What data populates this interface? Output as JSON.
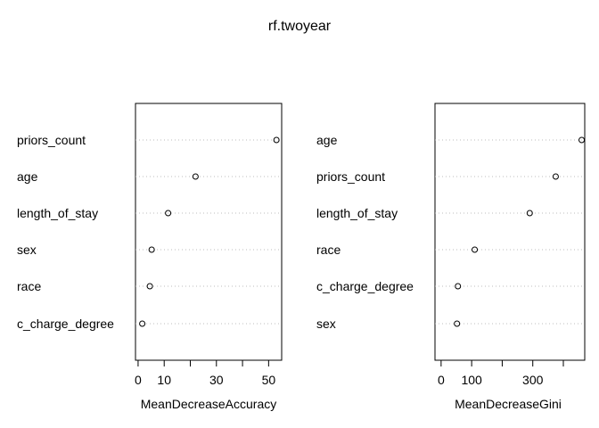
{
  "title": "rf.twoyear",
  "chart_data": [
    {
      "type": "scatter",
      "subtype": "dotchart",
      "xlabel": "MeanDecreaseAccuracy",
      "categories": [
        "priors_count",
        "age",
        "length_of_stay",
        "sex",
        "race",
        "c_charge_degree"
      ],
      "values": [
        53,
        22,
        11.5,
        5.2,
        4.5,
        1.6
      ],
      "xlim": [
        -1,
        55
      ],
      "xticks": [
        0,
        10,
        20,
        30,
        40,
        50
      ],
      "xtick_labels": [
        "0",
        "10",
        "",
        "30",
        "",
        "50"
      ],
      "grid": "dotted-horizontal"
    },
    {
      "type": "scatter",
      "subtype": "dotchart",
      "xlabel": "MeanDecreaseGini",
      "categories": [
        "age",
        "priors_count",
        "length_of_stay",
        "race",
        "c_charge_degree",
        "sex"
      ],
      "values": [
        460,
        375,
        290,
        110,
        55,
        52
      ],
      "xlim": [
        -20,
        470
      ],
      "xticks": [
        0,
        100,
        200,
        300,
        400
      ],
      "xtick_labels": [
        "0",
        "100",
        "",
        "300",
        ""
      ],
      "grid": "dotted-horizontal"
    }
  ]
}
